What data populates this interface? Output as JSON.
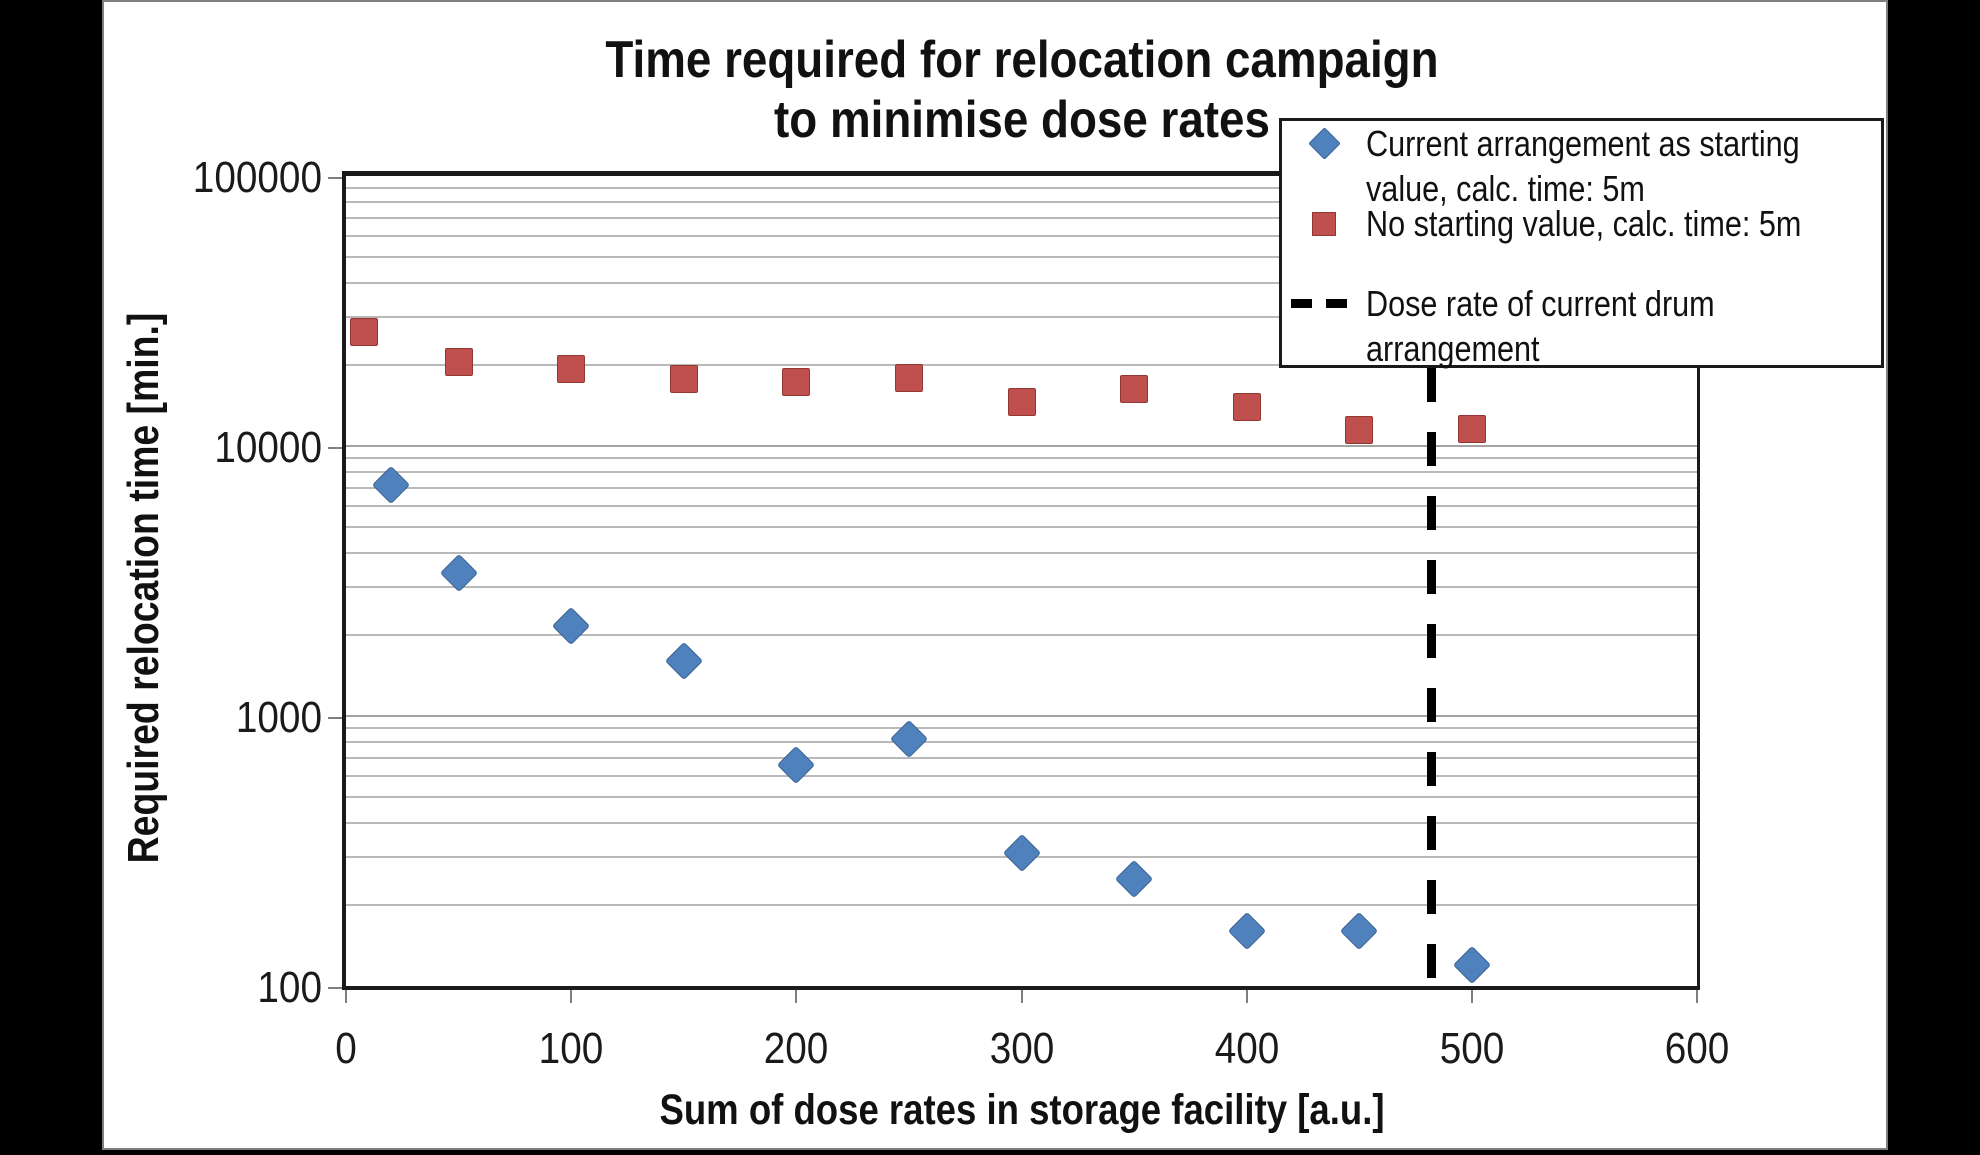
{
  "page": {
    "background": "#000000",
    "canvas_background": "#ffffff"
  },
  "chart_data": {
    "type": "scatter",
    "title_lines": [
      "Time required for relocation campaign",
      "to minimise dose rates"
    ],
    "x_axis": {
      "label": "Sum of dose rates in storage facility [a.u.]",
      "min": 0,
      "max": 600,
      "ticks": [
        0,
        100,
        200,
        300,
        400,
        500,
        600
      ]
    },
    "y_axis": {
      "label": "Required relocation time [min.]",
      "scale": "log",
      "min": 100,
      "max": 100000,
      "ticks": [
        100000,
        10000,
        1000,
        100
      ],
      "tick_labels": [
        "100000",
        "10000",
        "1000",
        "100"
      ]
    },
    "grid": {
      "major": true,
      "minor_log": true,
      "color_major": "#a3a3a3",
      "color_minor": "#b9b9b9"
    },
    "legend_position": "top-right-overlay",
    "series": [
      {
        "name": "Current arrangement as starting value, calc. time: 5m",
        "marker": "diamond",
        "color": "#4F81BD",
        "points": [
          [
            20,
            7200
          ],
          [
            50,
            3400
          ],
          [
            100,
            2150
          ],
          [
            150,
            1600
          ],
          [
            200,
            660
          ],
          [
            250,
            820
          ],
          [
            300,
            310
          ],
          [
            350,
            250
          ],
          [
            400,
            160
          ],
          [
            450,
            160
          ],
          [
            500,
            120
          ]
        ]
      },
      {
        "name": "No starting value, calc. time: 5m",
        "marker": "square",
        "color": "#C0504D",
        "points": [
          [
            8,
            26500
          ],
          [
            50,
            20500
          ],
          [
            100,
            19300
          ],
          [
            150,
            17700
          ],
          [
            200,
            17300
          ],
          [
            250,
            17900
          ],
          [
            300,
            14500
          ],
          [
            350,
            16200
          ],
          [
            400,
            13900
          ],
          [
            450,
            11500
          ],
          [
            500,
            11600
          ]
        ]
      }
    ],
    "reference_line": {
      "label": "Dose rate of current drum arrangement",
      "x": 482,
      "style": "dashed",
      "color": "#000000"
    }
  },
  "legend": {
    "entries": [
      {
        "marker": "diamond",
        "color": "#4F81BD",
        "label_lines": [
          "Current arrangement as starting",
          "value, calc. time: 5m"
        ]
      },
      {
        "marker": "square",
        "color": "#C0504D",
        "label_lines": [
          "No starting value, calc. time: 5m"
        ]
      },
      {
        "marker": "dash",
        "color": "#000000",
        "label_lines": [
          "Dose rate of current drum",
          "arrangement"
        ]
      }
    ]
  }
}
